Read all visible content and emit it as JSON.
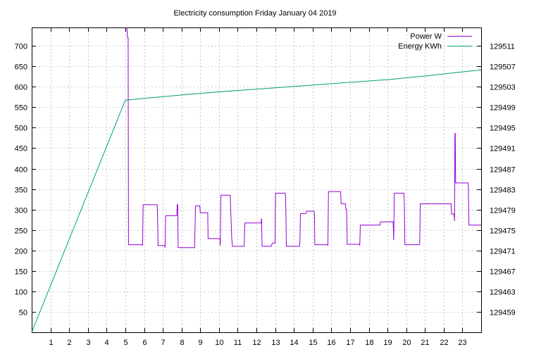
{
  "chart_data": {
    "type": "line",
    "title": "Electricity consumption Friday January 04 2019",
    "xlabel": "",
    "ylabel": "",
    "y2label": "",
    "xlim": [
      0,
      24
    ],
    "ylim": [
      0,
      745
    ],
    "y2lim": [
      129455,
      129514.6
    ],
    "x_ticks": [
      1,
      2,
      3,
      4,
      5,
      6,
      7,
      8,
      9,
      10,
      11,
      12,
      13,
      14,
      15,
      16,
      17,
      18,
      19,
      20,
      21,
      22,
      23
    ],
    "y_ticks": [
      50,
      100,
      150,
      200,
      250,
      300,
      350,
      400,
      450,
      500,
      550,
      600,
      650,
      700
    ],
    "y2_ticks": [
      129459,
      129463,
      129467,
      129471,
      129475,
      129479,
      129483,
      129487,
      129491,
      129495,
      129499,
      129503,
      129507,
      129511
    ],
    "grid": true,
    "legend_position": "top-right",
    "series": [
      {
        "name": "Power W",
        "axis": "left",
        "color": "#9400d3",
        "points": [
          [
            5.08,
            745
          ],
          [
            5.12,
            720
          ],
          [
            5.15,
            720
          ],
          [
            5.17,
            214
          ],
          [
            5.9,
            214
          ],
          [
            5.92,
            212
          ],
          [
            5.95,
            312
          ],
          [
            6.7,
            312
          ],
          [
            6.72,
            290
          ],
          [
            6.75,
            212
          ],
          [
            7.1,
            212
          ],
          [
            7.12,
            207
          ],
          [
            7.15,
            285
          ],
          [
            7.75,
            285
          ],
          [
            7.77,
            312
          ],
          [
            7.8,
            312
          ],
          [
            7.82,
            207
          ],
          [
            8.7,
            207
          ],
          [
            8.72,
            250
          ],
          [
            8.75,
            309
          ],
          [
            8.98,
            309
          ],
          [
            9.0,
            292
          ],
          [
            9.4,
            292
          ],
          [
            9.42,
            229
          ],
          [
            10.05,
            229
          ],
          [
            10.07,
            212
          ],
          [
            10.1,
            335
          ],
          [
            10.6,
            335
          ],
          [
            10.62,
            312
          ],
          [
            10.68,
            232
          ],
          [
            10.72,
            210
          ],
          [
            11.35,
            210
          ],
          [
            11.38,
            267
          ],
          [
            12.25,
            267
          ],
          [
            12.28,
            278
          ],
          [
            12.3,
            210
          ],
          [
            12.78,
            210
          ],
          [
            12.8,
            212
          ],
          [
            12.85,
            218
          ],
          [
            13.0,
            218
          ],
          [
            13.02,
            340
          ],
          [
            13.55,
            340
          ],
          [
            13.57,
            312
          ],
          [
            13.6,
            210
          ],
          [
            14.3,
            210
          ],
          [
            14.32,
            220
          ],
          [
            14.35,
            290
          ],
          [
            14.65,
            290
          ],
          [
            14.68,
            296
          ],
          [
            15.08,
            296
          ],
          [
            15.1,
            285
          ],
          [
            15.12,
            214
          ],
          [
            15.8,
            214
          ],
          [
            15.82,
            212
          ],
          [
            15.85,
            344
          ],
          [
            16.5,
            344
          ],
          [
            16.52,
            314
          ],
          [
            16.75,
            314
          ],
          [
            16.78,
            300
          ],
          [
            16.82,
            300
          ],
          [
            16.85,
            215
          ],
          [
            17.5,
            215
          ],
          [
            17.52,
            212
          ],
          [
            17.55,
            262
          ],
          [
            18.6,
            262
          ],
          [
            18.62,
            270
          ],
          [
            19.3,
            270
          ],
          [
            19.33,
            225
          ],
          [
            19.36,
            340
          ],
          [
            19.88,
            340
          ],
          [
            19.9,
            312
          ],
          [
            19.93,
            214
          ],
          [
            20.7,
            214
          ],
          [
            20.72,
            216
          ],
          [
            20.75,
            314
          ],
          [
            22.4,
            314
          ],
          [
            22.42,
            289
          ],
          [
            22.55,
            289
          ],
          [
            22.58,
            272
          ],
          [
            22.6,
            486
          ],
          [
            22.62,
            486
          ],
          [
            22.64,
            365
          ],
          [
            23.3,
            365
          ],
          [
            23.32,
            355
          ],
          [
            23.35,
            262
          ],
          [
            24.0,
            262
          ]
        ]
      },
      {
        "name": "Energy KWh",
        "axis": "right",
        "color": "#009e73",
        "points": [
          [
            0,
            129455
          ],
          [
            5.0,
            129500.4
          ],
          [
            8.0,
            129501.4
          ],
          [
            10.0,
            129502.0
          ],
          [
            13.0,
            129502.8
          ],
          [
            16.0,
            129503.6
          ],
          [
            19.0,
            129504.4
          ],
          [
            21.0,
            129505.1
          ],
          [
            24.0,
            129506.3
          ]
        ]
      }
    ]
  }
}
